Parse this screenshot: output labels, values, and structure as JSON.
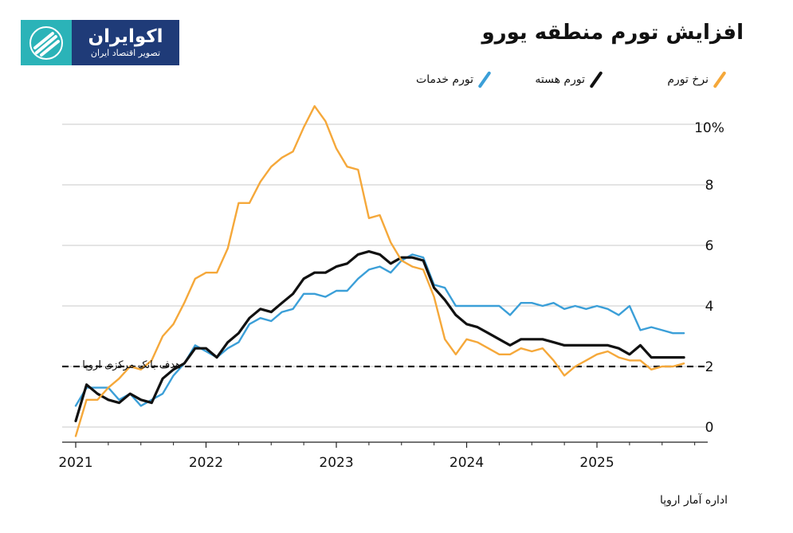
{
  "logo": {
    "name": "اکوایران",
    "tagline": "تصویر اقتصاد ایران"
  },
  "chart_data": {
    "type": "line",
    "title": "افزایش تورم منطقه یورو",
    "source": "اداره آمار اروپا",
    "target_label": "هدف بانک مرکزی اروپا",
    "target_value": 2,
    "xlabel": "",
    "ylabel": "",
    "ylim": [
      -0.5,
      10.5
    ],
    "xlim": [
      2021.0,
      2025.85
    ],
    "y_ticks": [
      {
        "value": 10,
        "label": "10%"
      },
      {
        "value": 8,
        "label": "8"
      },
      {
        "value": 6,
        "label": "6"
      },
      {
        "value": 4,
        "label": "4"
      },
      {
        "value": 2,
        "label": "2"
      },
      {
        "value": 0,
        "label": "0"
      }
    ],
    "x_ticks": [
      {
        "value": 2021,
        "label": "2021"
      },
      {
        "value": 2022,
        "label": "2022"
      },
      {
        "value": 2023,
        "label": "2023"
      },
      {
        "value": 2024,
        "label": "2024"
      },
      {
        "value": 2025,
        "label": "2025"
      }
    ],
    "series": [
      {
        "name": "نرخ تورم",
        "color": "#f5a83a",
        "values": [
          [
            2021.0,
            -0.3
          ],
          [
            2021.083,
            0.9
          ],
          [
            2021.167,
            0.9
          ],
          [
            2021.25,
            1.3
          ],
          [
            2021.333,
            1.6
          ],
          [
            2021.417,
            2.0
          ],
          [
            2021.5,
            1.9
          ],
          [
            2021.583,
            2.2
          ],
          [
            2021.667,
            3.0
          ],
          [
            2021.75,
            3.4
          ],
          [
            2021.833,
            4.1
          ],
          [
            2021.917,
            4.9
          ],
          [
            2022.0,
            5.1
          ],
          [
            2022.083,
            5.1
          ],
          [
            2022.167,
            5.9
          ],
          [
            2022.25,
            7.4
          ],
          [
            2022.333,
            7.4
          ],
          [
            2022.417,
            8.1
          ],
          [
            2022.5,
            8.6
          ],
          [
            2022.583,
            8.9
          ],
          [
            2022.667,
            9.1
          ],
          [
            2022.75,
            9.9
          ],
          [
            2022.833,
            10.6
          ],
          [
            2022.917,
            10.1
          ],
          [
            2023.0,
            9.2
          ],
          [
            2023.083,
            8.6
          ],
          [
            2023.167,
            8.5
          ],
          [
            2023.25,
            6.9
          ],
          [
            2023.333,
            7.0
          ],
          [
            2023.417,
            6.1
          ],
          [
            2023.5,
            5.5
          ],
          [
            2023.583,
            5.3
          ],
          [
            2023.667,
            5.2
          ],
          [
            2023.75,
            4.3
          ],
          [
            2023.833,
            2.9
          ],
          [
            2023.917,
            2.4
          ],
          [
            2024.0,
            2.9
          ],
          [
            2024.083,
            2.8
          ],
          [
            2024.167,
            2.6
          ],
          [
            2024.25,
            2.4
          ],
          [
            2024.333,
            2.4
          ],
          [
            2024.417,
            2.6
          ],
          [
            2024.5,
            2.5
          ],
          [
            2024.583,
            2.6
          ],
          [
            2024.667,
            2.2
          ],
          [
            2024.75,
            1.7
          ],
          [
            2024.833,
            2.0
          ],
          [
            2024.917,
            2.2
          ],
          [
            2025.0,
            2.4
          ],
          [
            2025.083,
            2.5
          ],
          [
            2025.167,
            2.3
          ],
          [
            2025.25,
            2.2
          ],
          [
            2025.333,
            2.2
          ],
          [
            2025.417,
            1.9
          ],
          [
            2025.5,
            2.0
          ],
          [
            2025.583,
            2.0
          ],
          [
            2025.667,
            2.1
          ]
        ]
      },
      {
        "name": "تورم هسته",
        "color": "#111111",
        "values": [
          [
            2021.0,
            0.2
          ],
          [
            2021.083,
            1.4
          ],
          [
            2021.167,
            1.1
          ],
          [
            2021.25,
            0.9
          ],
          [
            2021.333,
            0.8
          ],
          [
            2021.417,
            1.1
          ],
          [
            2021.5,
            0.9
          ],
          [
            2021.583,
            0.8
          ],
          [
            2021.667,
            1.6
          ],
          [
            2021.75,
            1.9
          ],
          [
            2021.833,
            2.1
          ],
          [
            2021.917,
            2.6
          ],
          [
            2022.0,
            2.6
          ],
          [
            2022.083,
            2.3
          ],
          [
            2022.167,
            2.8
          ],
          [
            2022.25,
            3.1
          ],
          [
            2022.333,
            3.6
          ],
          [
            2022.417,
            3.9
          ],
          [
            2022.5,
            3.8
          ],
          [
            2022.583,
            4.1
          ],
          [
            2022.667,
            4.4
          ],
          [
            2022.75,
            4.9
          ],
          [
            2022.833,
            5.1
          ],
          [
            2022.917,
            5.1
          ],
          [
            2023.0,
            5.3
          ],
          [
            2023.083,
            5.4
          ],
          [
            2023.167,
            5.7
          ],
          [
            2023.25,
            5.8
          ],
          [
            2023.333,
            5.7
          ],
          [
            2023.417,
            5.4
          ],
          [
            2023.5,
            5.6
          ],
          [
            2023.583,
            5.6
          ],
          [
            2023.667,
            5.5
          ],
          [
            2023.75,
            4.6
          ],
          [
            2023.833,
            4.2
          ],
          [
            2023.917,
            3.7
          ],
          [
            2024.0,
            3.4
          ],
          [
            2024.083,
            3.3
          ],
          [
            2024.167,
            3.1
          ],
          [
            2024.25,
            2.9
          ],
          [
            2024.333,
            2.7
          ],
          [
            2024.417,
            2.9
          ],
          [
            2024.5,
            2.9
          ],
          [
            2024.583,
            2.9
          ],
          [
            2024.667,
            2.8
          ],
          [
            2024.75,
            2.7
          ],
          [
            2024.833,
            2.7
          ],
          [
            2024.917,
            2.7
          ],
          [
            2025.0,
            2.7
          ],
          [
            2025.083,
            2.7
          ],
          [
            2025.167,
            2.6
          ],
          [
            2025.25,
            2.4
          ],
          [
            2025.333,
            2.7
          ],
          [
            2025.417,
            2.3
          ],
          [
            2025.5,
            2.3
          ],
          [
            2025.583,
            2.3
          ],
          [
            2025.667,
            2.3
          ]
        ]
      },
      {
        "name": "تورم خدمات",
        "color": "#3b9fd8",
        "values": [
          [
            2021.0,
            0.7
          ],
          [
            2021.083,
            1.3
          ],
          [
            2021.167,
            1.3
          ],
          [
            2021.25,
            1.3
          ],
          [
            2021.333,
            0.9
          ],
          [
            2021.417,
            1.1
          ],
          [
            2021.5,
            0.7
          ],
          [
            2021.583,
            0.9
          ],
          [
            2021.667,
            1.1
          ],
          [
            2021.75,
            1.7
          ],
          [
            2021.833,
            2.1
          ],
          [
            2021.917,
            2.7
          ],
          [
            2022.0,
            2.5
          ],
          [
            2022.083,
            2.3
          ],
          [
            2022.167,
            2.6
          ],
          [
            2022.25,
            2.8
          ],
          [
            2022.333,
            3.4
          ],
          [
            2022.417,
            3.6
          ],
          [
            2022.5,
            3.5
          ],
          [
            2022.583,
            3.8
          ],
          [
            2022.667,
            3.9
          ],
          [
            2022.75,
            4.4
          ],
          [
            2022.833,
            4.4
          ],
          [
            2022.917,
            4.3
          ],
          [
            2023.0,
            4.5
          ],
          [
            2023.083,
            4.5
          ],
          [
            2023.167,
            4.9
          ],
          [
            2023.25,
            5.2
          ],
          [
            2023.333,
            5.3
          ],
          [
            2023.417,
            5.1
          ],
          [
            2023.5,
            5.5
          ],
          [
            2023.583,
            5.7
          ],
          [
            2023.667,
            5.6
          ],
          [
            2023.75,
            4.7
          ],
          [
            2023.833,
            4.6
          ],
          [
            2023.917,
            4.0
          ],
          [
            2024.0,
            4.0
          ],
          [
            2024.083,
            4.0
          ],
          [
            2024.167,
            4.0
          ],
          [
            2024.25,
            4.0
          ],
          [
            2024.333,
            3.7
          ],
          [
            2024.417,
            4.1
          ],
          [
            2024.5,
            4.1
          ],
          [
            2024.583,
            4.0
          ],
          [
            2024.667,
            4.1
          ],
          [
            2024.75,
            3.9
          ],
          [
            2024.833,
            4.0
          ],
          [
            2024.917,
            3.9
          ],
          [
            2025.0,
            4.0
          ],
          [
            2025.083,
            3.9
          ],
          [
            2025.167,
            3.7
          ],
          [
            2025.25,
            4.0
          ],
          [
            2025.333,
            3.2
          ],
          [
            2025.417,
            3.3
          ],
          [
            2025.5,
            3.2
          ],
          [
            2025.583,
            3.1
          ],
          [
            2025.667,
            3.1
          ]
        ]
      }
    ]
  }
}
